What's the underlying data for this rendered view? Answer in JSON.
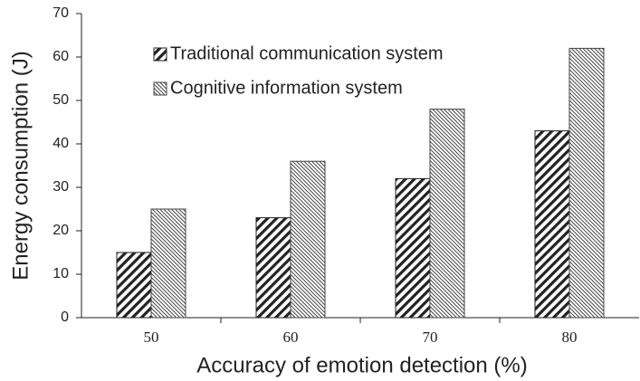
{
  "chart_data": {
    "type": "bar",
    "x_label": "Accuracy of emotion detection (%)",
    "y_label": "Energy consumption (J)",
    "categories": [
      "50",
      "60",
      "70",
      "80"
    ],
    "series": [
      {
        "name": "Traditional communication system",
        "color": "#222222",
        "pattern": "dense-hatch",
        "values": [
          15,
          23,
          32,
          43
        ]
      },
      {
        "name": "Cognitive information system",
        "color": "#444444",
        "pattern": "fine-hatch",
        "values": [
          25,
          36,
          48,
          62
        ]
      }
    ],
    "ylim": [
      0,
      70
    ],
    "yticks": [
      0,
      10,
      20,
      30,
      40,
      50,
      60,
      70
    ],
    "grid": false,
    "legend": "upper left"
  }
}
